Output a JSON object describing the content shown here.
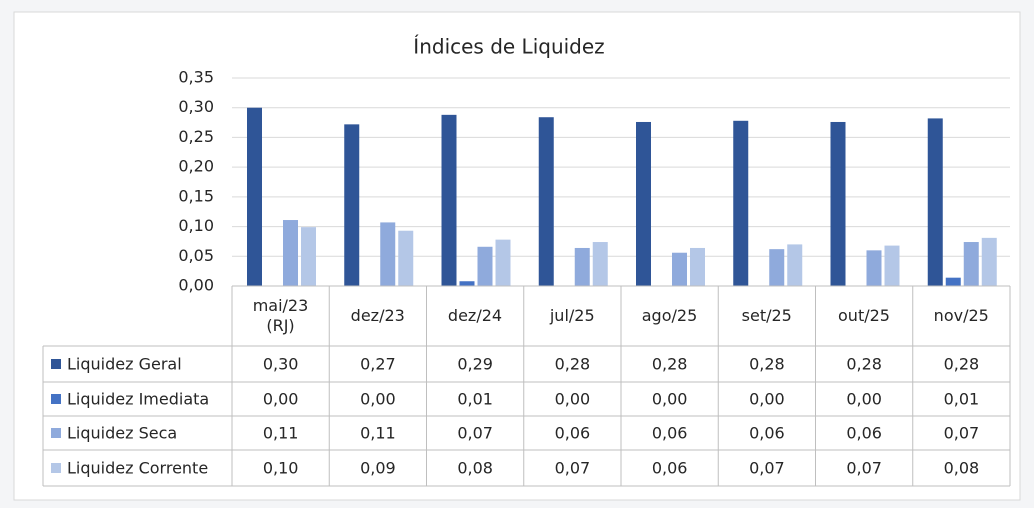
{
  "chart_data": {
    "type": "bar",
    "title": "Índices de Liquidez",
    "categories": [
      "mai/23\n(RJ)",
      "dez/23",
      "dez/24",
      "jul/25",
      "ago/25",
      "set/25",
      "out/25",
      "nov/25"
    ],
    "series": [
      {
        "name": "Liquidez Geral",
        "color": "#2f5597",
        "values": [
          0.3,
          0.272,
          0.288,
          0.284,
          0.276,
          0.278,
          0.276,
          0.282
        ],
        "value_labels": [
          "0,30",
          "0,27",
          "0,29",
          "0,28",
          "0,28",
          "0,28",
          "0,28",
          "0,28"
        ]
      },
      {
        "name": "Liquidez Imediata",
        "color": "#4472c4",
        "values": [
          0,
          0,
          0.008,
          0,
          0,
          0,
          0,
          0.014
        ],
        "value_labels": [
          "0,00",
          "0,00",
          "0,01",
          "0,00",
          "0,00",
          "0,00",
          "0,00",
          "0,01"
        ]
      },
      {
        "name": "Liquidez Seca",
        "color": "#8faadc",
        "values": [
          0.111,
          0.107,
          0.066,
          0.064,
          0.056,
          0.062,
          0.06,
          0.074
        ],
        "value_labels": [
          "0,11",
          "0,11",
          "0,07",
          "0,06",
          "0,06",
          "0,06",
          "0,06",
          "0,07"
        ]
      },
      {
        "name": "Liquidez Corrente",
        "color": "#b4c7e7",
        "values": [
          0.099,
          0.093,
          0.078,
          0.074,
          0.064,
          0.07,
          0.068,
          0.081
        ],
        "value_labels": [
          "0,10",
          "0,09",
          "0,08",
          "0,07",
          "0,06",
          "0,07",
          "0,07",
          "0,08"
        ]
      }
    ],
    "ylim": [
      0,
      0.35
    ],
    "yticks": [
      {
        "value": 0,
        "label": "0,00"
      },
      {
        "value": 0.05,
        "label": "0,05"
      },
      {
        "value": 0.1,
        "label": "0,10"
      },
      {
        "value": 0.15,
        "label": "0,15"
      },
      {
        "value": 0.2,
        "label": "0,20"
      },
      {
        "value": 0.25,
        "label": "0,25"
      },
      {
        "value": 0.3,
        "label": "0,30"
      },
      {
        "value": 0.35,
        "label": "0,35"
      }
    ],
    "grid": true
  }
}
